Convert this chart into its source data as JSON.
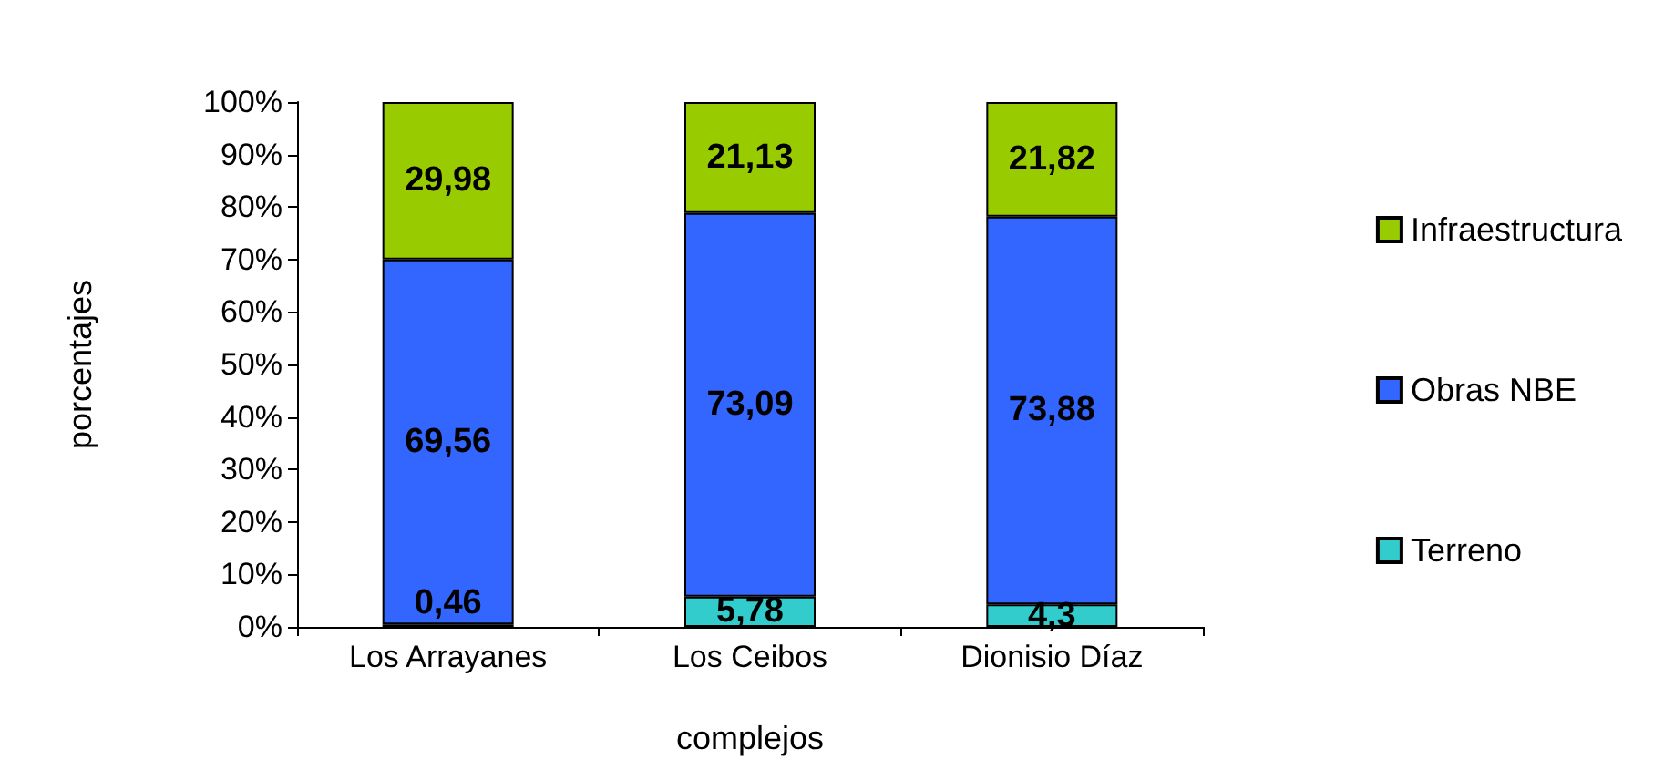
{
  "chart_data": {
    "type": "bar",
    "stacked": true,
    "xlabel": "complejos",
    "ylabel": "porcentajes",
    "categories": [
      "Los Arrayanes",
      "Los Ceibos",
      "Dionisio Díaz"
    ],
    "series": [
      {
        "name": "Terreno",
        "color": "#33cccc",
        "values": [
          0.46,
          5.78,
          4.3
        ],
        "value_labels": [
          "0,46",
          "5,78",
          "4,3"
        ]
      },
      {
        "name": "Obras NBE",
        "color": "#3366ff",
        "values": [
          69.56,
          73.09,
          73.88
        ],
        "value_labels": [
          "69,56",
          "73,09",
          "73,88"
        ]
      },
      {
        "name": "Infraestructura",
        "color": "#99cc00",
        "values": [
          29.98,
          21.13,
          21.82
        ],
        "value_labels": [
          "29,98",
          "21,13",
          "21,82"
        ]
      }
    ],
    "ylim": [
      0,
      100
    ],
    "yticks": [
      {
        "value": 0,
        "label": "0%"
      },
      {
        "value": 10,
        "label": "10%"
      },
      {
        "value": 20,
        "label": "20%"
      },
      {
        "value": 30,
        "label": "30%"
      },
      {
        "value": 40,
        "label": "40%"
      },
      {
        "value": 50,
        "label": "50%"
      },
      {
        "value": 60,
        "label": "60%"
      },
      {
        "value": 70,
        "label": "70%"
      },
      {
        "value": 80,
        "label": "80%"
      },
      {
        "value": 90,
        "label": "90%"
      },
      {
        "value": 100,
        "label": "100%"
      }
    ],
    "grid": false,
    "legend": "right"
  }
}
